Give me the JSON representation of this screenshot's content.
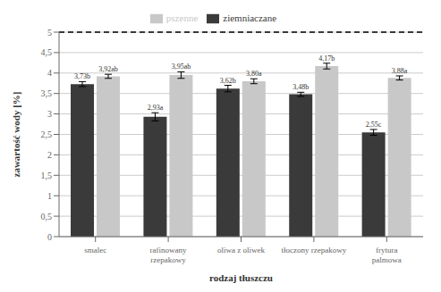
{
  "chart_data": {
    "type": "bar",
    "xlabel": "rodzaj tłuszczu",
    "ylabel": "zawartość wody [%]",
    "categories": [
      "smalec",
      "rafinowany\nrzepakowy",
      "oliwa z oliwek",
      "tłoczony rzepakowy",
      "frytura\npalmowa"
    ],
    "series": [
      {
        "name": "ziemniaczane",
        "color": "#3a3a3a",
        "values": [
          3.73,
          2.93,
          3.62,
          3.48,
          2.55
        ],
        "errors": [
          0.06,
          0.1,
          0.08,
          0.05,
          0.07
        ],
        "value_labels": [
          "3,73b",
          "2,93a",
          "3,62b",
          "3,48b",
          "2,55c"
        ]
      },
      {
        "name": "pszenne",
        "color": "#c8c8c8",
        "values": [
          3.92,
          3.95,
          3.8,
          4.17,
          3.88
        ],
        "errors": [
          0.05,
          0.08,
          0.06,
          0.07,
          0.05
        ],
        "value_labels": [
          "3,92ab",
          "3,95ab",
          "3,80a",
          "4,17b",
          "3,88a"
        ]
      }
    ],
    "ylim": [
      0,
      5.0
    ],
    "yticks": [
      0,
      {
        "value": 0.5,
        "label": "0,5"
      },
      1,
      {
        "value": 1.5,
        "label": "1,5"
      },
      2,
      {
        "value": 2.5,
        "label": "2,5"
      },
      3,
      {
        "value": 3.5,
        "label": "3,5"
      },
      4,
      {
        "value": 4.5,
        "label": "4,5"
      },
      5
    ],
    "reference_lines": [
      {
        "y": 5.0,
        "line_style": "dashed",
        "color": "#000000"
      }
    ],
    "grid": true,
    "legend": "top",
    "data_labels": true
  }
}
